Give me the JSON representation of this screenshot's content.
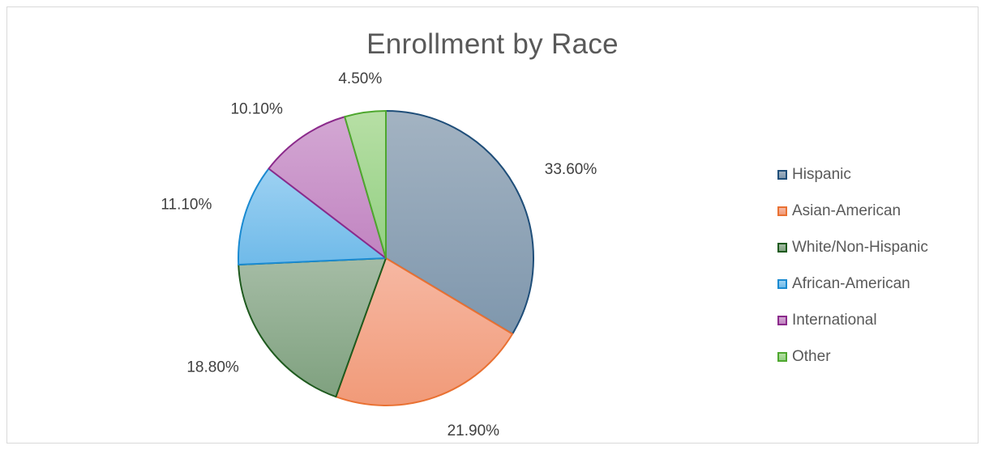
{
  "chart_data": {
    "type": "pie",
    "title": "Enrollment by Race",
    "start_angle_deg": 0,
    "direction": "clockwise",
    "legend_position": "right",
    "slices": [
      {
        "name": "Hispanic",
        "value": 33.6,
        "label": "33.60%",
        "fill_light": "#a3b3c2",
        "fill_dark": "#7f97ad",
        "border": "#1f4e79"
      },
      {
        "name": "Asian-American",
        "value": 21.9,
        "label": "21.90%",
        "fill_light": "#f6b8a3",
        "fill_dark": "#f19a78",
        "border": "#e97132"
      },
      {
        "name": "White/Non-Hispanic",
        "value": 18.8,
        "label": "18.80%",
        "fill_light": "#a5bca5",
        "fill_dark": "#7fa17f",
        "border": "#1e5a1e"
      },
      {
        "name": "African-American",
        "value": 11.1,
        "label": "11.10%",
        "fill_light": "#9dd1f2",
        "fill_dark": "#6fbae9",
        "border": "#1a8ad1"
      },
      {
        "name": "International",
        "value": 10.1,
        "label": "10.10%",
        "fill_light": "#d3a7d3",
        "fill_dark": "#c184c1",
        "border": "#8b2a8b"
      },
      {
        "name": "Other",
        "value": 4.5,
        "label": "4.50%",
        "fill_light": "#b7dfa5",
        "fill_dark": "#92cf82",
        "border": "#4ea72e"
      }
    ]
  }
}
